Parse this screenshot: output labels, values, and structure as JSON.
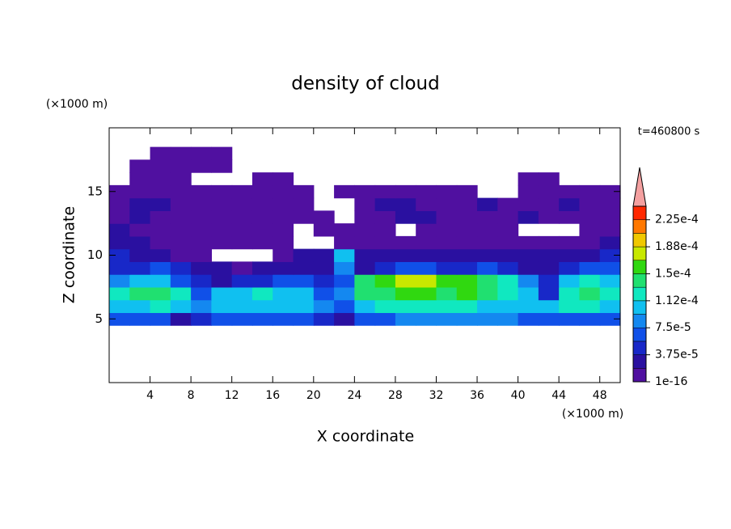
{
  "chart_data": {
    "type": "contour",
    "title": "density of cloud",
    "y_unit": "(×1000 m)",
    "x_unit": "(×1000 m)",
    "xlabel": "X coordinate",
    "ylabel": "Z coordinate",
    "annotation": "t=460800 s",
    "xlim": [
      0,
      50
    ],
    "ylim": [
      0,
      20
    ],
    "xticks": [
      4,
      8,
      12,
      16,
      20,
      24,
      28,
      32,
      36,
      40,
      44,
      48
    ],
    "yticks": [
      5,
      10,
      15
    ],
    "x": [
      1,
      3,
      5,
      7,
      9,
      11,
      13,
      15,
      17,
      19,
      21,
      23,
      25,
      27,
      29,
      31,
      33,
      35,
      37,
      39,
      41,
      43,
      45,
      47,
      49
    ],
    "z": [
      5,
      6,
      7,
      8,
      9,
      10,
      11,
      12,
      13,
      14,
      15,
      16,
      17,
      18
    ],
    "field": [
      [
        6.5e-05,
        6.5e-05,
        6.5e-05,
        3e-05,
        4.5e-05,
        6.5e-05,
        6.5e-05,
        6.5e-05,
        6.5e-05,
        6.5e-05,
        4.5e-05,
        3e-05,
        6.5e-05,
        6.5e-05,
        8.5e-05,
        8.5e-05,
        8.5e-05,
        8.5e-05,
        8.5e-05,
        8.5e-05,
        6.5e-05,
        6.5e-05,
        6.5e-05,
        6.5e-05,
        6.5e-05
      ],
      [
        0.0001,
        0.0001,
        0.00012,
        0.0001,
        8.5e-05,
        0.0001,
        0.0001,
        0.0001,
        0.0001,
        0.0001,
        8.5e-05,
        6.5e-05,
        0.0001,
        0.00012,
        0.00012,
        0.00012,
        0.00012,
        0.00012,
        0.0001,
        0.0001,
        0.0001,
        0.0001,
        0.00012,
        0.00012,
        0.0001
      ],
      [
        0.00012,
        0.00014,
        0.00014,
        0.00012,
        6.5e-05,
        0.0001,
        0.0001,
        0.00012,
        0.0001,
        0.0001,
        6.5e-05,
        8.5e-05,
        0.00014,
        0.00014,
        0.00016,
        0.00016,
        0.00014,
        0.00016,
        0.00014,
        0.00012,
        0.0001,
        4.5e-05,
        0.00012,
        0.00014,
        0.00012
      ],
      [
        8.5e-05,
        0.0001,
        0.0001,
        6.5e-05,
        4.5e-05,
        3e-05,
        4.5e-05,
        4.5e-05,
        6.5e-05,
        6.5e-05,
        4.5e-05,
        6.5e-05,
        0.00014,
        0.00016,
        0.000175,
        0.000175,
        0.00016,
        0.00016,
        0.00014,
        0.00012,
        8.5e-05,
        4.5e-05,
        0.0001,
        0.00012,
        0.0001
      ],
      [
        4.5e-05,
        4.5e-05,
        6.5e-05,
        4.5e-05,
        3e-05,
        3e-05,
        1e-05,
        3e-05,
        3e-05,
        3e-05,
        3e-05,
        8.5e-05,
        3e-05,
        4.5e-05,
        6.5e-05,
        6.5e-05,
        4.5e-05,
        4.5e-05,
        6.5e-05,
        4.5e-05,
        3e-05,
        3e-05,
        4.5e-05,
        6.5e-05,
        6.5e-05
      ],
      [
        4.5e-05,
        3e-05,
        3e-05,
        1e-05,
        1e-05,
        null,
        null,
        null,
        1e-05,
        3e-05,
        3e-05,
        0.0001,
        3e-05,
        3e-05,
        3e-05,
        3e-05,
        3e-05,
        3e-05,
        3e-05,
        3e-05,
        3e-05,
        3e-05,
        3e-05,
        3e-05,
        4.5e-05
      ],
      [
        3e-05,
        3e-05,
        1e-05,
        1e-05,
        1e-05,
        1e-05,
        1e-05,
        1e-05,
        1e-05,
        null,
        null,
        1e-05,
        1e-05,
        1e-05,
        1e-05,
        1e-05,
        1e-05,
        1e-05,
        1e-05,
        1e-05,
        1e-05,
        1e-05,
        1e-05,
        1e-05,
        3e-05
      ],
      [
        3e-05,
        1e-05,
        1e-05,
        1e-05,
        1e-05,
        1e-05,
        1e-05,
        1e-05,
        1e-05,
        null,
        1e-05,
        1e-05,
        1e-05,
        1e-05,
        null,
        1e-05,
        1e-05,
        1e-05,
        1e-05,
        1e-05,
        null,
        null,
        null,
        1e-05,
        1e-05
      ],
      [
        1e-05,
        3e-05,
        1e-05,
        1e-05,
        1e-05,
        1e-05,
        1e-05,
        1e-05,
        1e-05,
        1e-05,
        1e-05,
        null,
        1e-05,
        1e-05,
        3e-05,
        3e-05,
        1e-05,
        1e-05,
        1e-05,
        1e-05,
        3e-05,
        1e-05,
        1e-05,
        1e-05,
        1e-05
      ],
      [
        1e-05,
        3e-05,
        3e-05,
        1e-05,
        1e-05,
        1e-05,
        1e-05,
        1e-05,
        1e-05,
        1e-05,
        null,
        null,
        1e-05,
        3e-05,
        3e-05,
        1e-05,
        1e-05,
        1e-05,
        3e-05,
        1e-05,
        1e-05,
        1e-05,
        3e-05,
        1e-05,
        1e-05
      ],
      [
        1e-05,
        1e-05,
        1e-05,
        1e-05,
        1e-05,
        1e-05,
        1e-05,
        1e-05,
        1e-05,
        1e-05,
        null,
        1e-05,
        1e-05,
        1e-05,
        1e-05,
        1e-05,
        1e-05,
        1e-05,
        null,
        null,
        1e-05,
        1e-05,
        1e-05,
        1e-05,
        1e-05
      ],
      [
        null,
        1e-05,
        1e-05,
        1e-05,
        null,
        null,
        null,
        1e-05,
        1e-05,
        null,
        null,
        null,
        null,
        null,
        null,
        null,
        null,
        null,
        null,
        null,
        1e-05,
        1e-05,
        null,
        null,
        null
      ],
      [
        null,
        1e-05,
        1e-05,
        1e-05,
        1e-05,
        1e-05,
        null,
        null,
        null,
        null,
        null,
        null,
        null,
        null,
        null,
        null,
        null,
        null,
        null,
        null,
        null,
        null,
        null,
        null,
        null
      ],
      [
        null,
        null,
        1e-05,
        1e-05,
        1e-05,
        1e-05,
        null,
        null,
        null,
        null,
        null,
        null,
        null,
        null,
        null,
        null,
        null,
        null,
        null,
        null,
        null,
        null,
        null,
        null,
        null
      ]
    ],
    "levels": [
      1e-16,
      1.875e-05,
      3.75e-05,
      5.625e-05,
      7.5e-05,
      9.375e-05,
      0.0001125,
      0.00013125,
      0.00015,
      0.00016875,
      0.0001875,
      0.00020625,
      0.000225,
      0.00024375
    ],
    "level_colors": [
      "#5010a0",
      "#2a10a0",
      "#1828c8",
      "#1050e8",
      "#1488f0",
      "#10c0f0",
      "#10e8c0",
      "#20e070",
      "#30d810",
      "#c8e800",
      "#f0c800",
      "#ff7800",
      "#ff2800"
    ],
    "over_color": "#f4a0a0",
    "colorbar_ticks": [
      {
        "value": 1e-16,
        "label": "1e-16"
      },
      {
        "value": 3.75e-05,
        "label": "3.75e-5"
      },
      {
        "value": 7.5e-05,
        "label": "7.5e-5"
      },
      {
        "value": 0.0001125,
        "label": "1.12e-4"
      },
      {
        "value": 0.00015,
        "label": "1.5e-4"
      },
      {
        "value": 0.0001875,
        "label": "1.88e-4"
      },
      {
        "value": 0.000225,
        "label": "2.25e-4"
      }
    ]
  }
}
